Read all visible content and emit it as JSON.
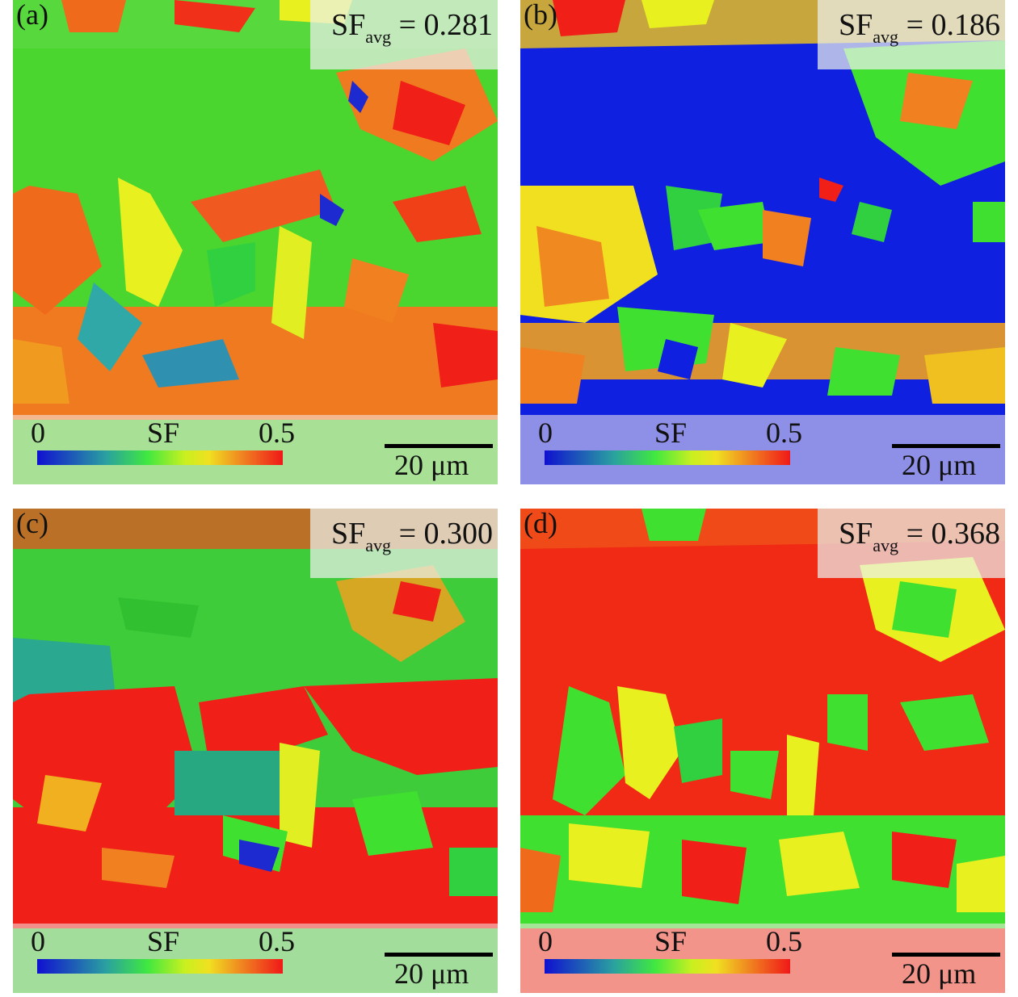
{
  "panels": [
    {
      "label": "(a)",
      "sf_prefix": "SF",
      "sf_sub": "avg",
      "sf_value": "= 0.281",
      "base": "#4ad62e"
    },
    {
      "label": "(b)",
      "sf_prefix": "SF",
      "sf_sub": "avg",
      "sf_value": "= 0.186",
      "base": "#1020e0"
    },
    {
      "label": "(c)",
      "sf_prefix": "SF",
      "sf_sub": "avg",
      "sf_value": "= 0.300",
      "base": "#3ecc3a"
    },
    {
      "label": "(d)",
      "sf_prefix": "SF",
      "sf_sub": "avg",
      "sf_value": "= 0.368",
      "base": "#f02a14"
    }
  ],
  "colorbar": {
    "min_label": "0",
    "title": "SF",
    "max_label": "0.5"
  },
  "scale_bar": {
    "label": "20 μm"
  },
  "colors": {
    "blue": "#1020e0",
    "green": "#40e030",
    "yellow": "#e8f020",
    "orange": "#f07a20",
    "red": "#f02018"
  }
}
